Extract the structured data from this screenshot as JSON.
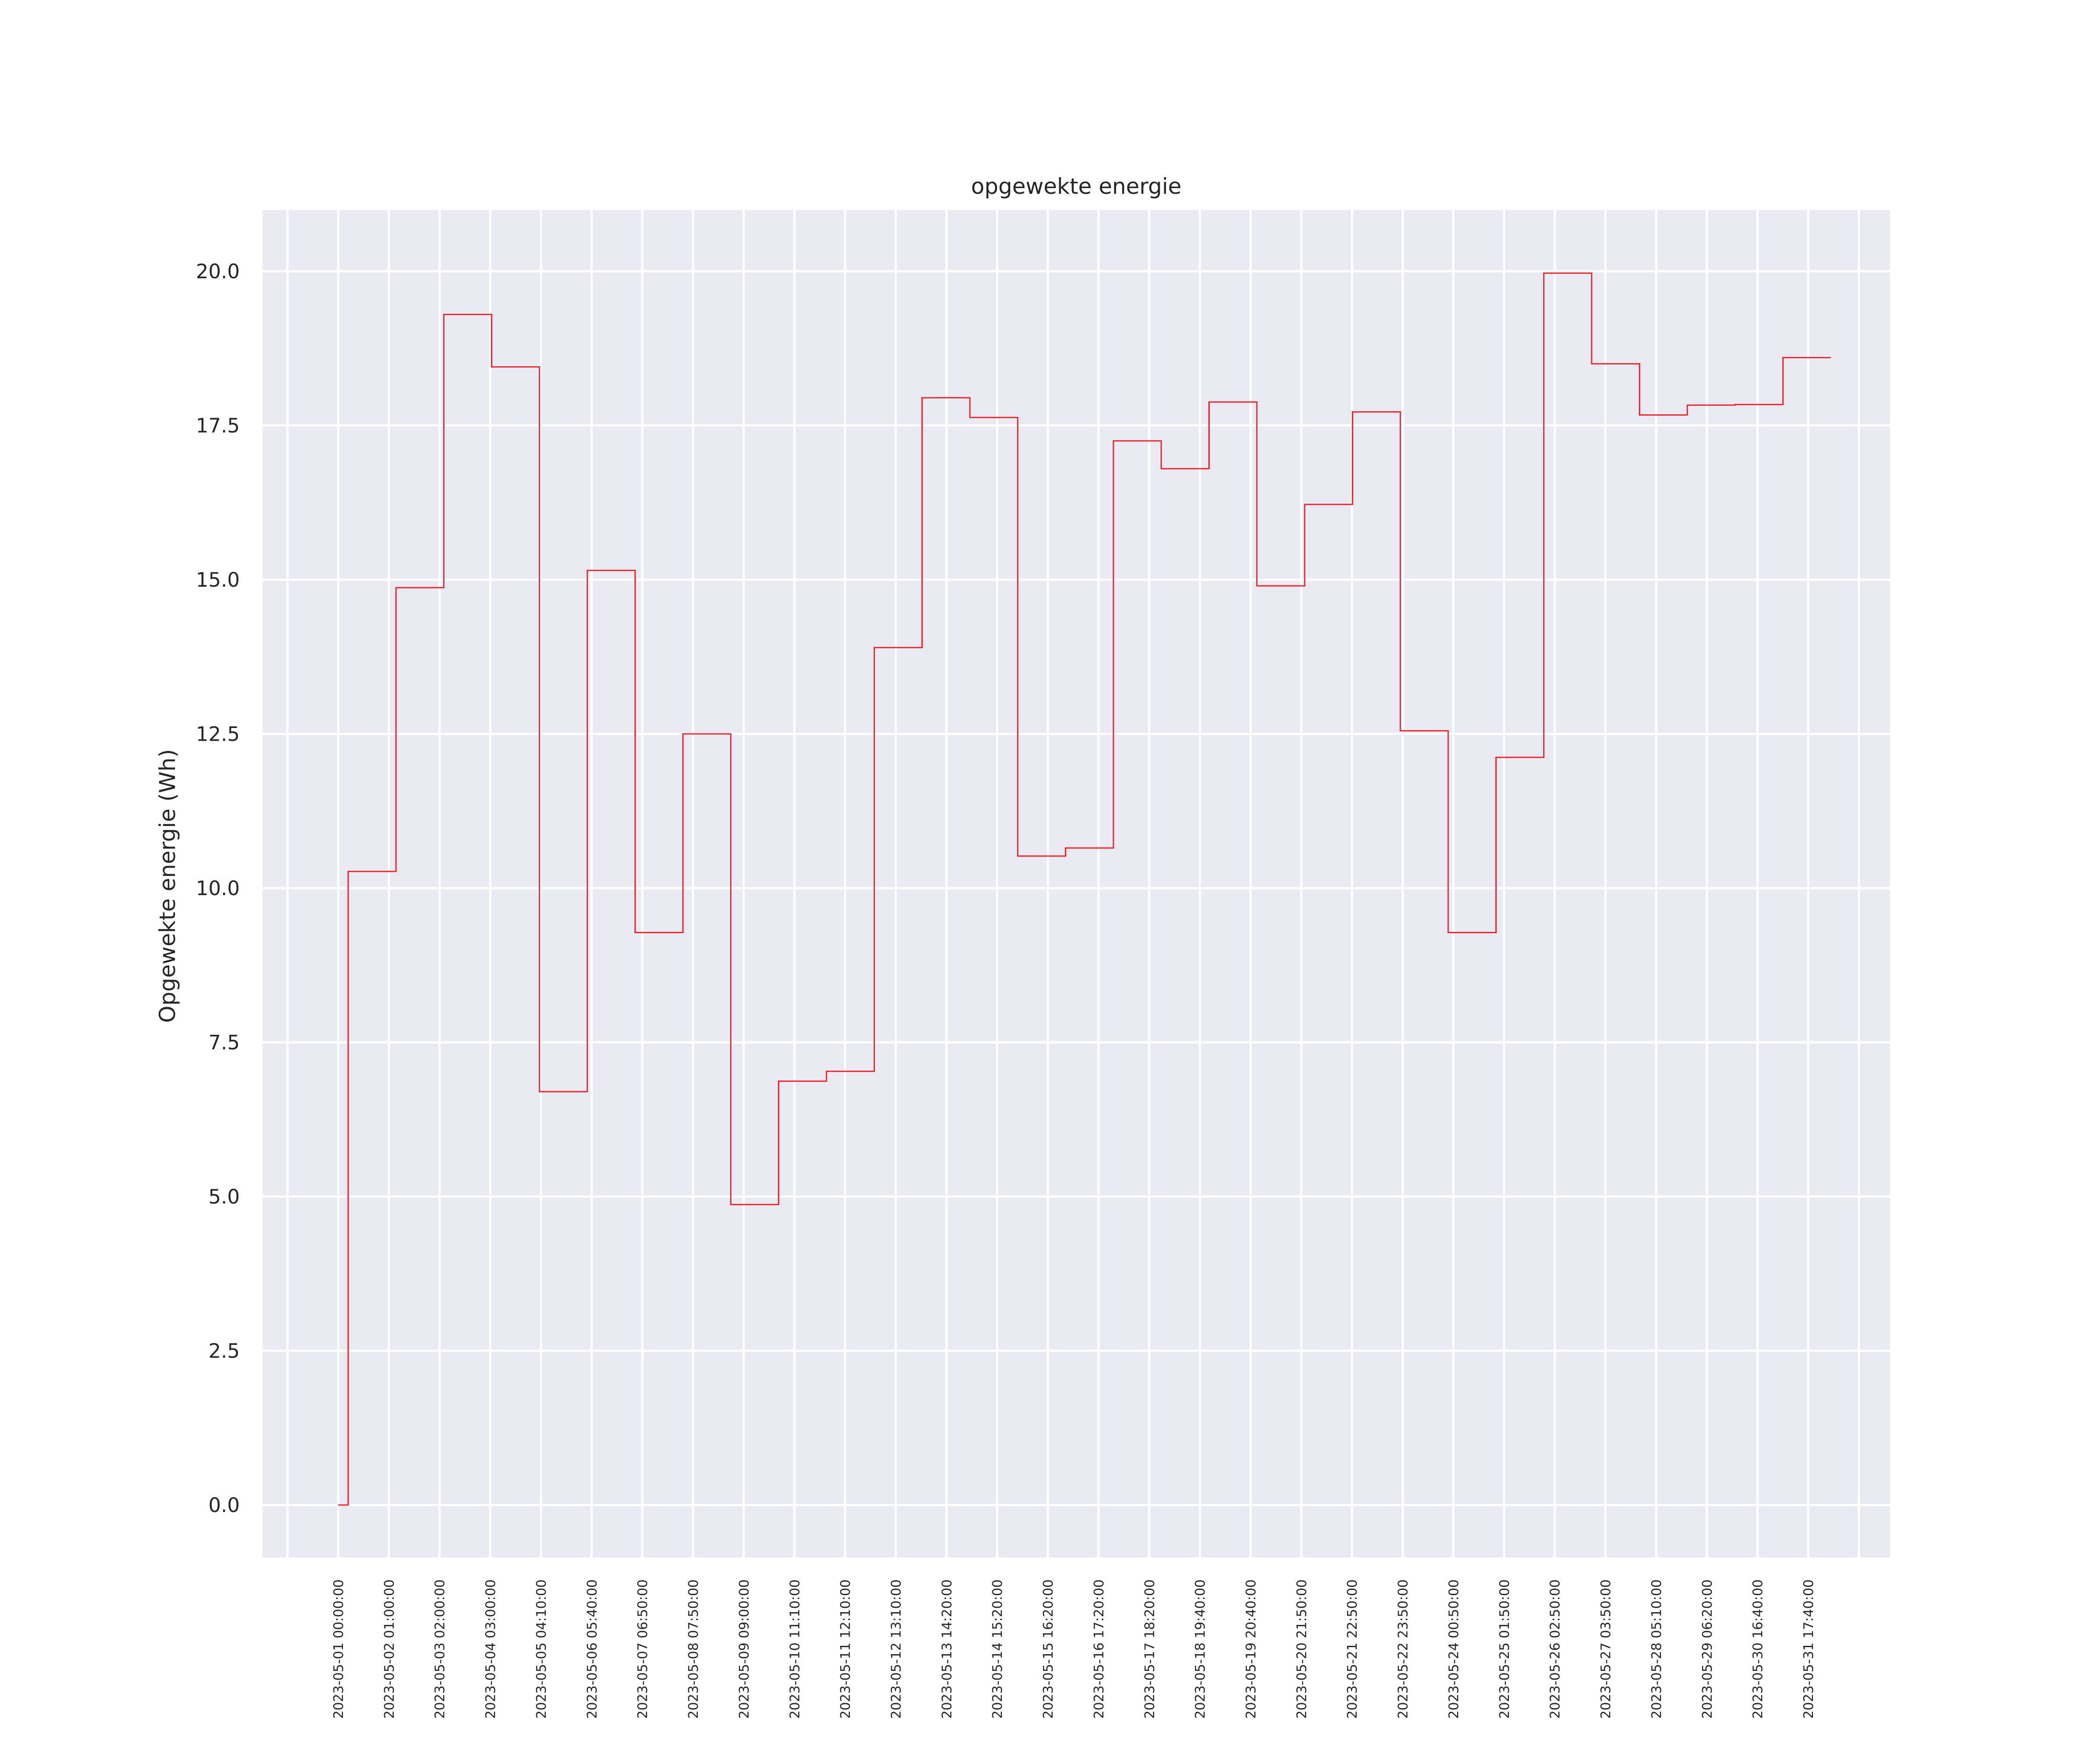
{
  "chart_data": {
    "type": "line",
    "step": "post",
    "title": "opgewekte energie",
    "xlabel": "",
    "ylabel": "Opgewekte energie (Wh)",
    "ylim": [
      -0.95,
      20.95
    ],
    "yticks": [
      "0.0",
      "2.5",
      "5.0",
      "7.5",
      "10.0",
      "12.5",
      "15.0",
      "17.5",
      "20.0"
    ],
    "grid": true,
    "line_color": "#e8262b",
    "background_color": "#eaeaf2",
    "x_tick_labels": [
      "2023-05-01 00:00:00",
      "2023-05-02 01:00:00",
      "2023-05-03 02:00:00",
      "2023-05-04 03:00:00",
      "2023-05-05 04:10:00",
      "2023-05-06 05:40:00",
      "2023-05-07 06:50:00",
      "2023-05-08 07:50:00",
      "2023-05-09 09:00:00",
      "2023-05-10 11:10:00",
      "2023-05-11 12:10:00",
      "2023-05-12 13:10:00",
      "2023-05-13 14:20:00",
      "2023-05-14 15:20:00",
      "2023-05-15 16:20:00",
      "2023-05-16 17:20:00",
      "2023-05-17 18:20:00",
      "2023-05-18 19:40:00",
      "2023-05-19 20:40:00",
      "2023-05-20 21:50:00",
      "2023-05-21 22:50:00",
      "2023-05-22 23:50:00",
      "2023-05-24 00:50:00",
      "2023-05-25 01:50:00",
      "2023-05-26 02:50:00",
      "2023-05-27 03:50:00",
      "2023-05-28 05:10:00",
      "2023-05-29 06:20:00",
      "2023-05-30 16:40:00",
      "2023-05-31 17:40:00"
    ],
    "series": [
      {
        "steps": [
          {
            "x0": "2023-05-01 00:00:00",
            "x1": "2023-05-01 05:00:00",
            "y": 0.0
          },
          {
            "x0": "2023-05-01 05:00:00",
            "x1": "2023-05-02 05:00:00",
            "y": 10.27
          },
          {
            "x0": "2023-05-02 05:00:00",
            "x1": "2023-05-03 05:00:00",
            "y": 14.87
          },
          {
            "x0": "2023-05-03 05:00:00",
            "x1": "2023-05-04 05:00:00",
            "y": 19.3
          },
          {
            "x0": "2023-05-04 05:00:00",
            "x1": "2023-05-05 05:00:00",
            "y": 18.45
          },
          {
            "x0": "2023-05-05 05:00:00",
            "x1": "2023-05-06 05:00:00",
            "y": 6.7
          },
          {
            "x0": "2023-05-06 05:00:00",
            "x1": "2023-05-07 05:00:00",
            "y": 15.15
          },
          {
            "x0": "2023-05-07 05:00:00",
            "x1": "2023-05-08 05:00:00",
            "y": 9.28
          },
          {
            "x0": "2023-05-08 05:00:00",
            "x1": "2023-05-09 05:00:00",
            "y": 12.5
          },
          {
            "x0": "2023-05-09 05:00:00",
            "x1": "2023-05-10 05:00:00",
            "y": 4.87
          },
          {
            "x0": "2023-05-10 05:00:00",
            "x1": "2023-05-11 05:00:00",
            "y": 6.87
          },
          {
            "x0": "2023-05-11 05:00:00",
            "x1": "2023-05-12 05:00:00",
            "y": 7.03
          },
          {
            "x0": "2023-05-12 05:00:00",
            "x1": "2023-05-13 05:00:00",
            "y": 13.9
          },
          {
            "x0": "2023-05-13 05:00:00",
            "x1": "2023-05-14 05:00:00",
            "y": 17.95
          },
          {
            "x0": "2023-05-14 05:00:00",
            "x1": "2023-05-15 05:00:00",
            "y": 17.63
          },
          {
            "x0": "2023-05-15 05:00:00",
            "x1": "2023-05-16 05:00:00",
            "y": 10.52
          },
          {
            "x0": "2023-05-16 05:00:00",
            "x1": "2023-05-17 05:00:00",
            "y": 10.65
          },
          {
            "x0": "2023-05-17 05:00:00",
            "x1": "2023-05-18 05:00:00",
            "y": 17.25
          },
          {
            "x0": "2023-05-18 05:00:00",
            "x1": "2023-05-19 05:00:00",
            "y": 16.8
          },
          {
            "x0": "2023-05-19 05:00:00",
            "x1": "2023-05-20 05:00:00",
            "y": 17.88
          },
          {
            "x0": "2023-05-20 05:00:00",
            "x1": "2023-05-21 05:00:00",
            "y": 14.9
          },
          {
            "x0": "2023-05-21 05:00:00",
            "x1": "2023-05-22 05:00:00",
            "y": 16.22
          },
          {
            "x0": "2023-05-22 05:00:00",
            "x1": "2023-05-23 05:00:00",
            "y": 17.72
          },
          {
            "x0": "2023-05-23 05:00:00",
            "x1": "2023-05-24 05:00:00",
            "y": 12.55
          },
          {
            "x0": "2023-05-24 05:00:00",
            "x1": "2023-05-25 05:00:00",
            "y": 9.28
          },
          {
            "x0": "2023-05-25 05:00:00",
            "x1": "2023-05-26 05:00:00",
            "y": 12.12
          },
          {
            "x0": "2023-05-26 05:00:00",
            "x1": "2023-05-27 05:00:00",
            "y": 19.97
          },
          {
            "x0": "2023-05-27 05:00:00",
            "x1": "2023-05-28 05:00:00",
            "y": 18.5
          },
          {
            "x0": "2023-05-28 05:00:00",
            "x1": "2023-05-29 05:00:00",
            "y": 17.67
          },
          {
            "x0": "2023-05-29 05:00:00",
            "x1": "2023-05-30 05:00:00",
            "y": 17.83
          },
          {
            "x0": "2023-05-30 05:00:00",
            "x1": "2023-05-31 05:00:00",
            "y": 17.84
          },
          {
            "x0": "2023-05-31 05:00:00",
            "x1": "2023-06-01 05:00:00",
            "y": 18.6
          }
        ]
      }
    ]
  }
}
